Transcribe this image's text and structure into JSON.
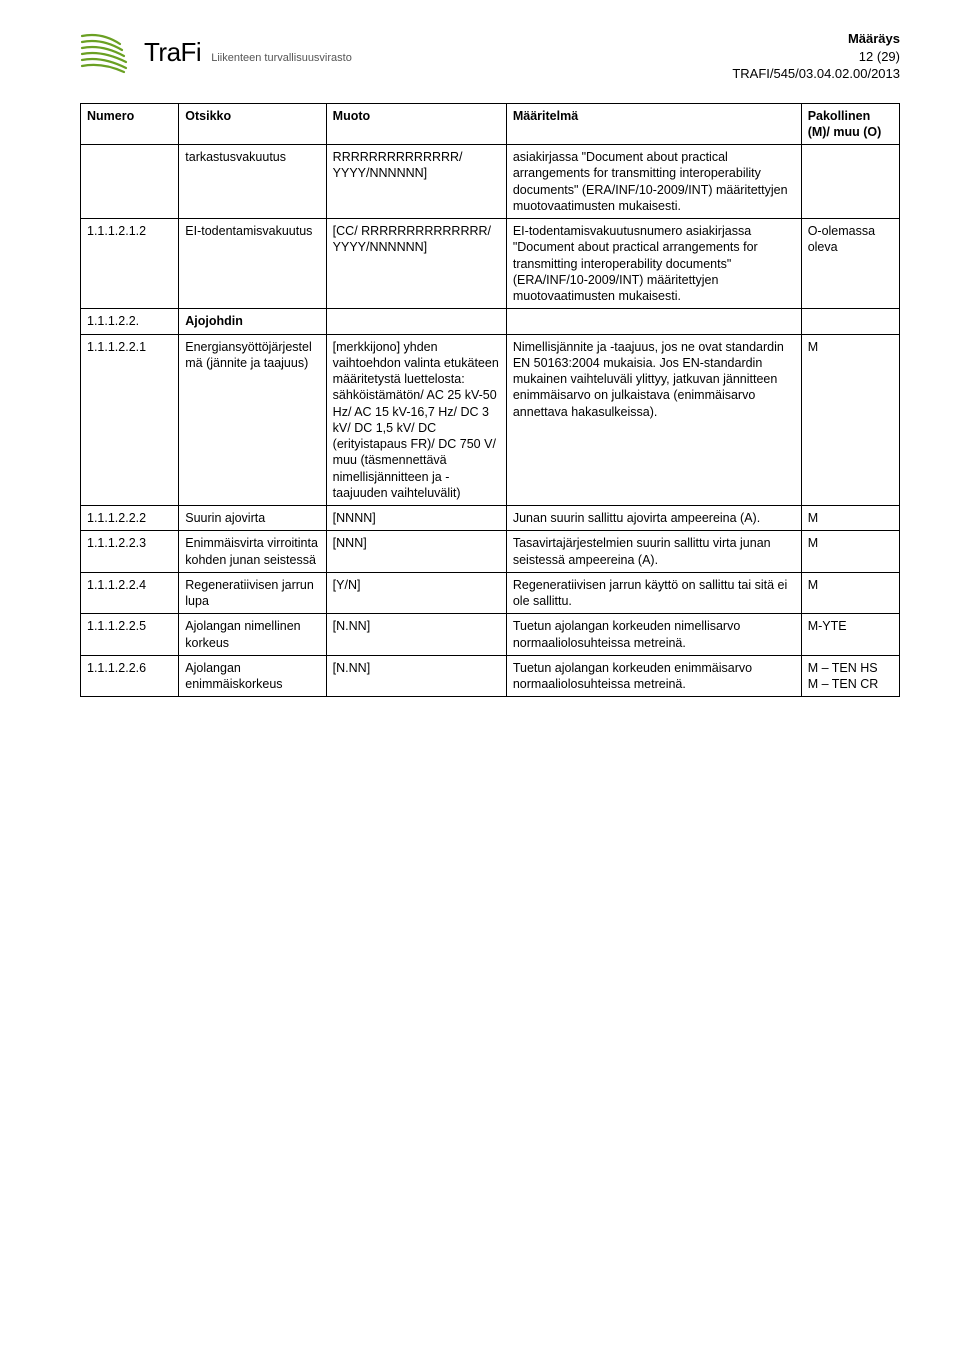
{
  "header": {
    "logo_brand": "TraFi",
    "logo_subtitle": "Liikenteen turvallisuusvirasto",
    "doc_type": "Määräys",
    "page_counter": "12 (29)",
    "doc_ref": "TRAFI/545/03.04.02.00/2013"
  },
  "columns": {
    "c1": "Numero",
    "c2": "Otsikko",
    "c3": "Muoto",
    "c4": "Määritelmä",
    "c5": "Pakollinen (M)/ muu (O)"
  },
  "rows": [
    {
      "num": "",
      "title": "tarkastusvakuutus",
      "format": "RRRRRRRRRRRRRR/ YYYY/NNNNNN]",
      "def": "asiakirjassa \"Document about practical arrangements for transmitting interoperability documents\" (ERA/INF/10-2009/INT) määritettyjen muotovaatimusten mukaisesti.",
      "req": ""
    },
    {
      "num": "1.1.1.2.1.2",
      "title": "EI-todentamisvakuutus",
      "format": "[CC/ RRRRRRRRRRRRRR/ YYYY/NNNNNN]",
      "def": "EI-todentamisvakuutusnumero asiakirjassa \"Document about practical arrangements for transmitting interoperability documents\" (ERA/INF/10-2009/INT) määritettyjen muotovaatimusten mukaisesti.",
      "req": "O-olemassa oleva"
    },
    {
      "num": "1.1.1.2.2.",
      "title": "Ajojohdin",
      "format": "",
      "def": "",
      "req": "",
      "section": true
    },
    {
      "num": "1.1.1.2.2.1",
      "title": "Energiansyöttöjärjestelmä (jännite ja taajuus)",
      "format": "[merkkijono] yhden vaihtoehdon valinta etukäteen määritetystä luettelosta: sähköistämätön/ AC 25 kV-50 Hz/ AC 15 kV-16,7 Hz/ DC 3 kV/ DC 1,5 kV/ DC (erityistapaus FR)/ DC 750 V/ muu (täsmennettävä nimellisjännitteen ja -taajuuden vaihteluvälit)",
      "def": "Nimellisjännite ja -taajuus, jos ne ovat standardin EN 50163:2004 mukaisia. Jos EN-standardin mukainen vaihteluväli ylittyy, jatkuvan jännitteen enimmäisarvo on julkaistava (enimmäisarvo annettava hakasulkeissa).",
      "req": "M"
    },
    {
      "num": "1.1.1.2.2.2",
      "title": "Suurin ajovirta",
      "format": "[NNNN]",
      "def": "Junan suurin sallittu ajovirta ampeereina (A).",
      "req": "M"
    },
    {
      "num": "1.1.1.2.2.3",
      "title": "Enimmäisvirta virroitinta kohden junan seistessä",
      "format": "[NNN]",
      "def": "Tasavirtajärjestelmien suurin sallittu virta junan seistessä ampeereina (A).",
      "req": "M"
    },
    {
      "num": "1.1.1.2.2.4",
      "title": "Regeneratiivisen jarrun lupa",
      "format": "[Y/N]",
      "def": "Regeneratiivisen jarrun käyttö on sallittu tai sitä ei ole sallittu.",
      "req": "M"
    },
    {
      "num": "1.1.1.2.2.5",
      "title": "Ajolangan nimellinen korkeus",
      "format": "[N.NN]",
      "def": "Tuetun ajolangan korkeuden nimellisarvo normaaliolosuhteissa metreinä.",
      "req": "M-YTE"
    },
    {
      "num": "1.1.1.2.2.6",
      "title": "Ajolangan enimmäiskorkeus",
      "format": "[N.NN]",
      "def": "Tuetun ajolangan korkeuden enimmäisarvo normaaliolosuhteissa metreinä.",
      "req": "M – TEN HS\nM – TEN CR"
    }
  ],
  "style": {
    "logo_color": "#6aa023",
    "border_color": "#000000",
    "font_size_body": 12.5,
    "font_size_header": 13
  }
}
